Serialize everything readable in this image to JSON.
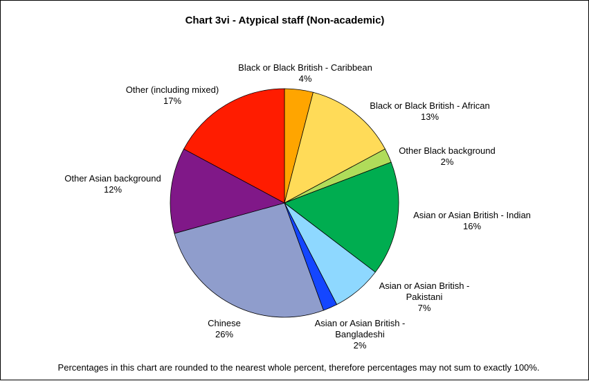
{
  "chart_data": {
    "type": "pie",
    "title": "Chart 3vi - Atypical staff (Non-academic)",
    "slices": [
      {
        "name": "Black or Black British - Caribbean",
        "value_label": "4%",
        "value": 4,
        "color": "#FFA500"
      },
      {
        "name": "Black or Black British - African",
        "value_label": "13%",
        "value": 13,
        "color": "#FFDB58"
      },
      {
        "name": "Other Black background",
        "value_label": "2%",
        "value": 2,
        "color": "#B0DC5A"
      },
      {
        "name": "Asian or Asian British - Indian",
        "value_label": "16%",
        "value": 16,
        "color": "#00AD50"
      },
      {
        "name": "Asian or Asian British - Pakistani",
        "value_label": "7%",
        "value": 7,
        "color": "#8ED8FF"
      },
      {
        "name": "Asian or Asian British - Bangladeshi",
        "value_label": "2%",
        "value": 2,
        "color": "#1446FF"
      },
      {
        "name": "Chinese",
        "value_label": "26%",
        "value": 26,
        "color": "#8F9DCC"
      },
      {
        "name": "Other Asian background",
        "value_label": "12%",
        "value": 12,
        "color": "#801888"
      },
      {
        "name": "Other (including mixed)",
        "value_label": "17%",
        "value": 17,
        "color": "#FF1C00"
      }
    ],
    "legend": "none",
    "start": "top",
    "direction": "clockwise"
  },
  "footnote": "Percentages in this chart are rounded to the nearest whole percent, therefore percentages may not sum to exactly 100%."
}
